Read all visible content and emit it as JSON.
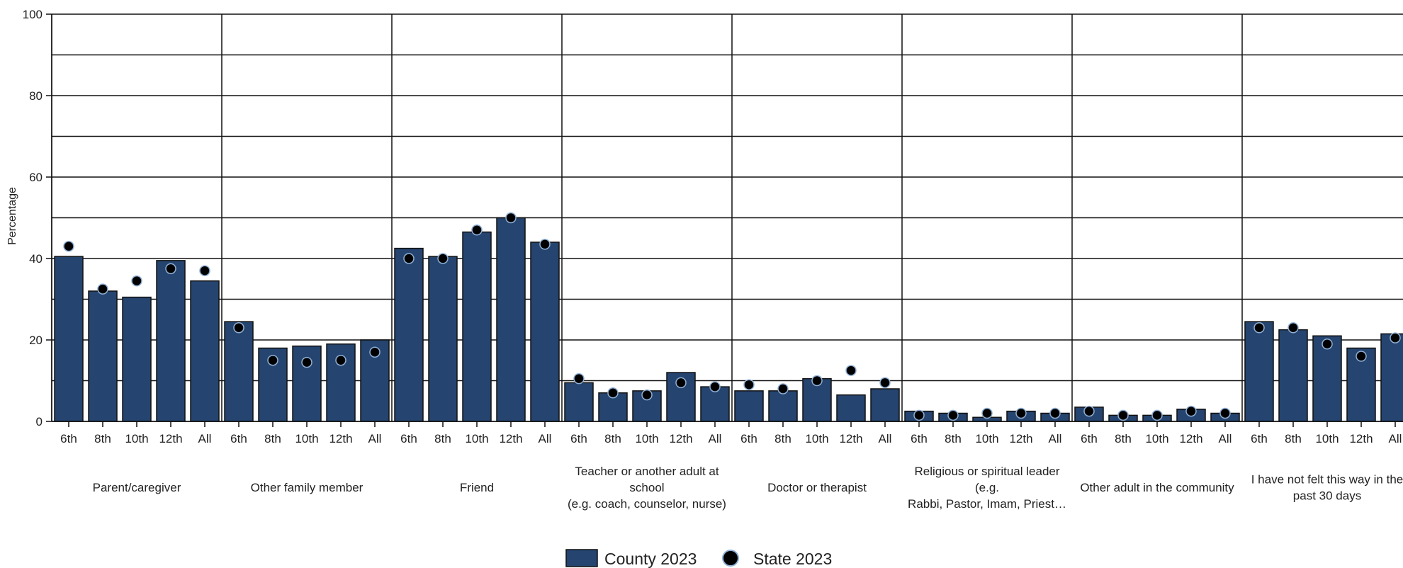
{
  "chart_data": {
    "type": "bar",
    "ylabel": "Percentage",
    "ylim": [
      0,
      100
    ],
    "yticks": [
      0,
      20,
      40,
      60,
      80,
      100
    ],
    "grid": true,
    "legend_position": "bottom-center",
    "subcategories": [
      "6th",
      "8th",
      "10th",
      "12th",
      "All"
    ],
    "groups": [
      {
        "label": [
          "Parent/caregiver"
        ]
      },
      {
        "label": [
          "Other family member"
        ]
      },
      {
        "label": [
          "Friend"
        ]
      },
      {
        "label": [
          "Teacher or another adult at",
          "school",
          "(e.g. coach, counselor, nurse)"
        ]
      },
      {
        "label": [
          "Doctor or therapist"
        ]
      },
      {
        "label": [
          "Religious or spiritual leader",
          "(e.g.",
          "Rabbi, Pastor, Imam, Priest…"
        ]
      },
      {
        "label": [
          "Other adult in the community"
        ]
      },
      {
        "label": [
          "I have not felt this way in the",
          "past 30 days"
        ]
      }
    ],
    "series": [
      {
        "name": "County 2023",
        "mark": "bar",
        "color": "#25446f",
        "values": [
          [
            40.5,
            32.0,
            30.5,
            39.5,
            34.5
          ],
          [
            24.5,
            18.0,
            18.5,
            19.0,
            20.0
          ],
          [
            42.5,
            40.5,
            46.5,
            50.0,
            44.0
          ],
          [
            9.5,
            7.0,
            7.5,
            12.0,
            8.5
          ],
          [
            7.5,
            7.5,
            10.5,
            6.5,
            8.0
          ],
          [
            2.5,
            2.0,
            1.0,
            2.5,
            2.0
          ],
          [
            3.5,
            1.5,
            1.5,
            3.0,
            2.0
          ],
          [
            24.5,
            22.5,
            21.0,
            18.0,
            21.5
          ]
        ]
      },
      {
        "name": "State 2023",
        "mark": "point",
        "color": "#000000",
        "values": [
          [
            43.0,
            32.5,
            34.5,
            37.5,
            37.0
          ],
          [
            23.0,
            15.0,
            14.5,
            15.0,
            17.0
          ],
          [
            40.0,
            40.0,
            47.0,
            50.0,
            43.5
          ],
          [
            10.5,
            7.0,
            6.5,
            9.5,
            8.5
          ],
          [
            9.0,
            8.0,
            10.0,
            12.5,
            9.5
          ],
          [
            1.5,
            1.5,
            2.0,
            2.0,
            2.0
          ],
          [
            2.5,
            1.5,
            1.5,
            2.5,
            2.0
          ],
          [
            23.0,
            23.0,
            19.0,
            16.0,
            20.5
          ]
        ]
      }
    ]
  }
}
